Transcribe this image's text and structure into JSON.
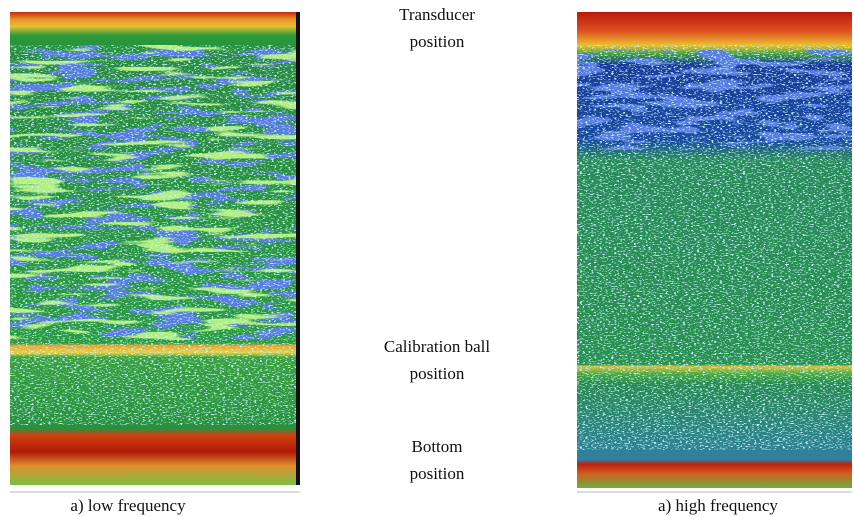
{
  "labels": [
    {
      "lines": [
        "Transducer",
        "position"
      ]
    },
    {
      "lines": [
        "Calibration ball",
        "position"
      ]
    },
    {
      "lines": [
        "Bottom",
        "position"
      ]
    }
  ],
  "captions": [
    "a) low frequency",
    "a) high frequency"
  ]
}
